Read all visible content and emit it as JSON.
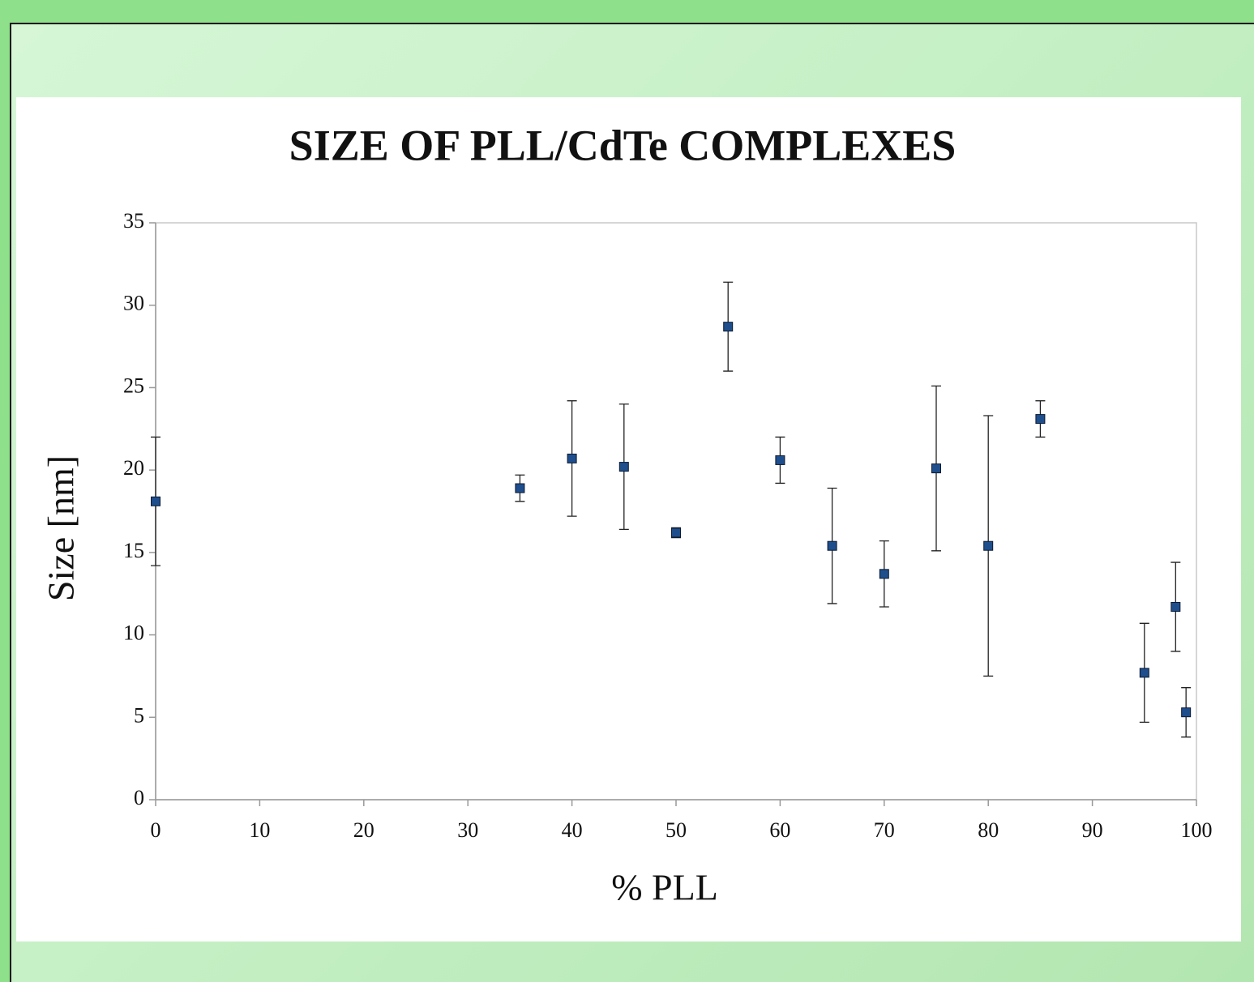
{
  "chart_data": {
    "type": "scatter",
    "title": "SIZE OF PLL/CdTe COMPLEXES",
    "x_label": "% PLL",
    "y_label": "Size [nm]",
    "x": [
      0,
      35,
      40,
      45,
      50,
      55,
      60,
      65,
      70,
      75,
      80,
      85,
      95,
      98,
      99
    ],
    "values": [
      18.1,
      18.9,
      20.7,
      20.2,
      16.2,
      28.7,
      20.6,
      15.4,
      13.7,
      20.1,
      15.4,
      23.1,
      7.7,
      11.7,
      5.3
    ],
    "errors": [
      3.9,
      0.8,
      3.5,
      3.8,
      0.3,
      2.7,
      1.4,
      3.5,
      2.0,
      5.0,
      7.9,
      1.1,
      3.0,
      2.7,
      1.5
    ],
    "color": "#1f4e8c",
    "xlim": [
      0,
      100
    ],
    "xticks": [
      0,
      10,
      20,
      30,
      40,
      50,
      60,
      70,
      80,
      90,
      100
    ],
    "ylim": [
      0,
      35
    ],
    "yticks": [
      0,
      5,
      10,
      15,
      20,
      25,
      30,
      35
    ],
    "grid": false
  }
}
